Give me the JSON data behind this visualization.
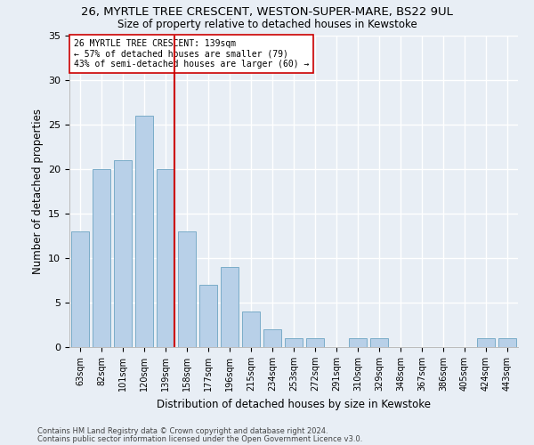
{
  "title1": "26, MYRTLE TREE CRESCENT, WESTON-SUPER-MARE, BS22 9UL",
  "title2": "Size of property relative to detached houses in Kewstoke",
  "xlabel": "Distribution of detached houses by size in Kewstoke",
  "ylabel": "Number of detached properties",
  "categories": [
    "63sqm",
    "82sqm",
    "101sqm",
    "120sqm",
    "139sqm",
    "158sqm",
    "177sqm",
    "196sqm",
    "215sqm",
    "234sqm",
    "253sqm",
    "272sqm",
    "291sqm",
    "310sqm",
    "329sqm",
    "348sqm",
    "367sqm",
    "386sqm",
    "405sqm",
    "424sqm",
    "443sqm"
  ],
  "values": [
    13,
    20,
    21,
    26,
    20,
    13,
    7,
    9,
    4,
    2,
    1,
    1,
    0,
    1,
    1,
    0,
    0,
    0,
    0,
    1,
    1
  ],
  "bar_color": "#b8d0e8",
  "bar_edge_color": "#7aacc8",
  "vline_color": "#cc0000",
  "vline_x_index": 4,
  "annotation_line1": "26 MYRTLE TREE CRESCENT: 139sqm",
  "annotation_line2": "← 57% of detached houses are smaller (79)",
  "annotation_line3": "43% of semi-detached houses are larger (60) →",
  "annotation_box_color": "#ffffff",
  "annotation_box_edge": "#cc0000",
  "footnote1": "Contains HM Land Registry data © Crown copyright and database right 2024.",
  "footnote2": "Contains public sector information licensed under the Open Government Licence v3.0.",
  "ylim": [
    0,
    35
  ],
  "background_color": "#e8eef5",
  "grid_color": "#ffffff"
}
